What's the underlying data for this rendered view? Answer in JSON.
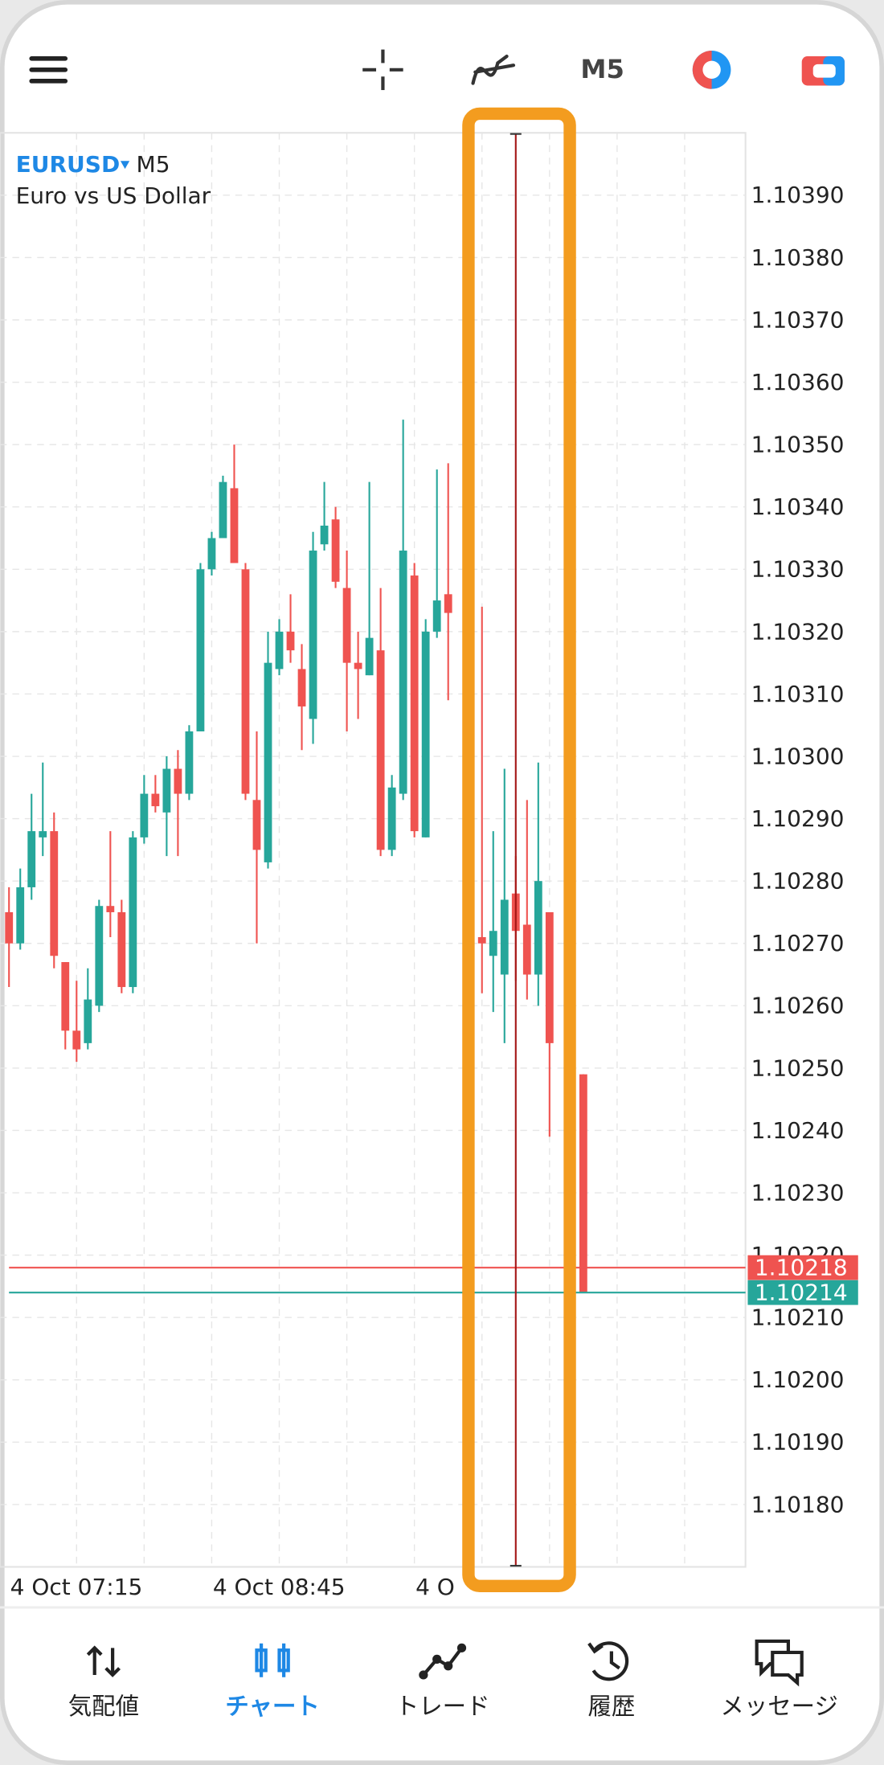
{
  "chart_data": {
    "type": "candlestick",
    "symbol": "EURUSD",
    "timeframe": "M5",
    "description": "Euro vs US Dollar",
    "categories": [
      null,
      null,
      null,
      null,
      null,
      null,
      "4 Oct 07:15",
      null,
      null,
      null,
      null,
      null,
      null,
      null,
      null,
      null,
      null,
      null,
      null,
      null,
      null,
      null,
      null,
      null,
      "4 Oct 08:45",
      null,
      null,
      null,
      null,
      null,
      null,
      null,
      null,
      null,
      null,
      null,
      null,
      null,
      null,
      null,
      null,
      null,
      "4 O",
      null,
      null,
      null,
      null,
      null,
      null,
      null,
      null,
      null
    ],
    "open": [
      1.10275,
      1.1027,
      1.10279,
      1.10287,
      1.10288,
      1.10267,
      1.10256,
      1.10254,
      1.1026,
      1.10276,
      1.10275,
      1.10263,
      1.10287,
      1.10294,
      1.10291,
      1.10298,
      1.10294,
      1.10304,
      1.1033,
      1.10335,
      1.10343,
      1.1033,
      1.10293,
      1.10283,
      1.10314,
      1.1032,
      1.10314,
      1.10306,
      1.10334,
      1.10338,
      1.10327,
      1.10315,
      1.10313,
      1.10317,
      1.10285,
      1.10294,
      1.10329,
      1.10287,
      1.1032,
      1.10326,
      null,
      null,
      1.10271,
      1.10268,
      1.10265,
      1.10278,
      1.10273,
      1.10265,
      1.10275,
      null,
      null,
      1.10249
    ],
    "high": [
      1.10279,
      1.10282,
      1.10294,
      1.10299,
      1.10291,
      1.10267,
      1.10264,
      1.10266,
      1.10277,
      1.10288,
      1.10277,
      1.10288,
      1.10297,
      1.10297,
      1.103,
      1.10301,
      1.10305,
      1.10331,
      1.10336,
      1.10345,
      1.1035,
      1.10331,
      1.10304,
      1.1032,
      1.10322,
      1.10326,
      1.10318,
      1.10336,
      1.10344,
      1.1034,
      1.10333,
      1.1032,
      1.10344,
      1.10327,
      1.10297,
      1.10354,
      1.10331,
      1.10322,
      1.10346,
      1.10347,
      null,
      null,
      1.10324,
      1.10288,
      1.10298,
      1.10284,
      1.10293,
      1.10299,
      1.10275,
      null,
      null,
      1.10249
    ],
    "low": [
      1.10263,
      1.10269,
      1.10277,
      1.10284,
      1.10266,
      1.10253,
      1.10251,
      1.10253,
      1.10259,
      1.10271,
      1.10262,
      1.10262,
      1.10286,
      1.10291,
      1.10284,
      1.10284,
      1.10293,
      1.10304,
      1.10329,
      1.10335,
      1.10331,
      1.10293,
      1.1027,
      1.10282,
      1.10313,
      1.10315,
      1.10301,
      1.10302,
      1.10333,
      1.10327,
      1.10304,
      1.10306,
      1.10313,
      1.10284,
      1.10284,
      1.10293,
      1.10287,
      1.10287,
      1.10319,
      1.10309,
      null,
      null,
      1.10262,
      1.10259,
      1.10254,
      1.10264,
      1.10261,
      1.1026,
      1.10239,
      null,
      null,
      1.10214
    ],
    "close": [
      1.1027,
      1.10279,
      1.10288,
      1.10288,
      1.10268,
      1.10256,
      1.10253,
      1.10261,
      1.10276,
      1.10275,
      1.10263,
      1.10287,
      1.10294,
      1.10292,
      1.10298,
      1.10294,
      1.10304,
      1.1033,
      1.10335,
      1.10344,
      1.10331,
      1.10294,
      1.10285,
      1.10315,
      1.1032,
      1.10317,
      1.10308,
      1.10333,
      1.10337,
      1.10328,
      1.10315,
      1.10314,
      1.10319,
      1.10285,
      1.10295,
      1.10333,
      1.10288,
      1.1032,
      1.10325,
      1.10323,
      null,
      null,
      1.1027,
      1.10272,
      1.10277,
      1.10272,
      1.10265,
      1.1028,
      1.10254,
      null,
      null,
      1.10214
    ],
    "up_color": "#26a69a",
    "down_color": "#ef5350",
    "ylim": [
      1.1017,
      1.104
    ],
    "yticks": [
      {
        "value": 1.1018,
        "label": "1.10180"
      },
      {
        "value": 1.1019,
        "label": "1.10190"
      },
      {
        "value": 1.102,
        "label": "1.10200"
      },
      {
        "value": 1.1021,
        "label": "1.10210"
      },
      {
        "value": 1.1022,
        "label": "1.10220"
      },
      {
        "value": 1.1023,
        "label": "1.10230"
      },
      {
        "value": 1.1024,
        "label": "1.10240"
      },
      {
        "value": 1.1025,
        "label": "1.10250"
      },
      {
        "value": 1.1026,
        "label": "1.10260"
      },
      {
        "value": 1.1027,
        "label": "1.10270"
      },
      {
        "value": 1.1028,
        "label": "1.10280"
      },
      {
        "value": 1.1029,
        "label": "1.10290"
      },
      {
        "value": 1.103,
        "label": "1.10300"
      },
      {
        "value": 1.1031,
        "label": "1.10310"
      },
      {
        "value": 1.1032,
        "label": "1.10320"
      },
      {
        "value": 1.1033,
        "label": "1.10330"
      },
      {
        "value": 1.1034,
        "label": "1.10340"
      },
      {
        "value": 1.1035,
        "label": "1.10350"
      },
      {
        "value": 1.1036,
        "label": "1.10360"
      },
      {
        "value": 1.1037,
        "label": "1.10370"
      },
      {
        "value": 1.1038,
        "label": "1.10380"
      },
      {
        "value": 1.1039,
        "label": "1.10390"
      }
    ],
    "grid": true,
    "price_lines": [
      {
        "value": 1.10218,
        "color": "#ef5350"
      },
      {
        "value": 1.10214,
        "color": "#26a69a"
      }
    ]
  },
  "nav": {
    "items": [
      "気配値",
      "チャート",
      "トレード",
      "履歴",
      "メッセージ"
    ],
    "active": 1
  }
}
